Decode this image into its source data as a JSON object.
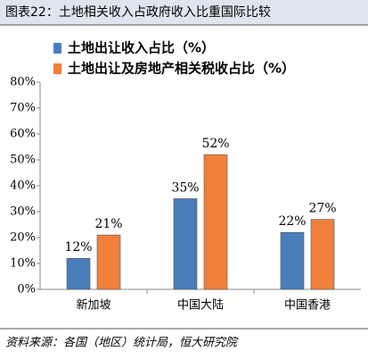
{
  "chart_data": {
    "type": "bar",
    "title": "图表22：土地相关收入占政府收入比重国际比较",
    "categories": [
      "新加坡",
      "中国大陆",
      "中国香港"
    ],
    "series": [
      {
        "name": "土地出让收入占比（%）",
        "color": "#4a7ebb",
        "values": [
          12,
          35,
          22
        ],
        "value_labels": [
          "12%",
          "35%",
          "22%"
        ]
      },
      {
        "name": "土地出让及房地产相关税收占比（%）",
        "color": "#f0803c",
        "values": [
          21,
          52,
          27
        ],
        "value_labels": [
          "21%",
          "52%",
          "27%"
        ]
      }
    ],
    "ylim": [
      0,
      80
    ],
    "yticks": [
      {
        "value": 0,
        "label": "0%"
      },
      {
        "value": 10,
        "label": "10%"
      },
      {
        "value": 20,
        "label": "20%"
      },
      {
        "value": 30,
        "label": "30%"
      },
      {
        "value": 40,
        "label": "40%"
      },
      {
        "value": 50,
        "label": "50%"
      },
      {
        "value": 60,
        "label": "60%"
      },
      {
        "value": 70,
        "label": "70%"
      },
      {
        "value": 80,
        "label": "80%"
      }
    ],
    "source": "资料来源：各国（地区）统计局，恒大研究院"
  }
}
